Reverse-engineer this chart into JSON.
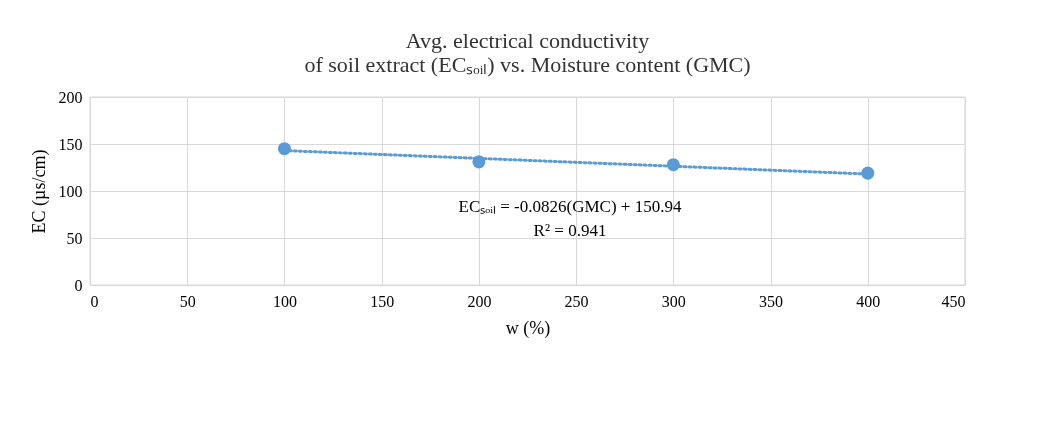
{
  "chart_data": {
    "type": "scatter",
    "title": "Avg. electrical conductivity\nof soil extract (ECₛₒᵢₗ) vs. Moisture content (GMC)",
    "xlabel": "w (%)",
    "ylabel": "EC (µs/cm)",
    "x": [
      100,
      200,
      300,
      400
    ],
    "series": [
      {
        "color": "#5b9bd5",
        "values": [
          145,
          131,
          128,
          119
        ],
        "marker": "circle"
      },
      {
        "type": "line",
        "color": "#5b9bd5",
        "x": [
          100,
          400
        ],
        "values": [
          143,
          118
        ],
        "line_style": "dotted",
        "marker": "none"
      }
    ],
    "xlim": [
      0,
      450
    ],
    "xticks": [
      0,
      50,
      100,
      150,
      200,
      250,
      300,
      350,
      400,
      450
    ],
    "ylim": [
      0,
      200
    ],
    "yticks": [
      0,
      50,
      100,
      150,
      200
    ],
    "grid": true,
    "legend": false,
    "annotations": [
      "ECₛₒᵢₗ = -0.0826(GMC) + 150.94",
      "R² = 0.941"
    ]
  }
}
